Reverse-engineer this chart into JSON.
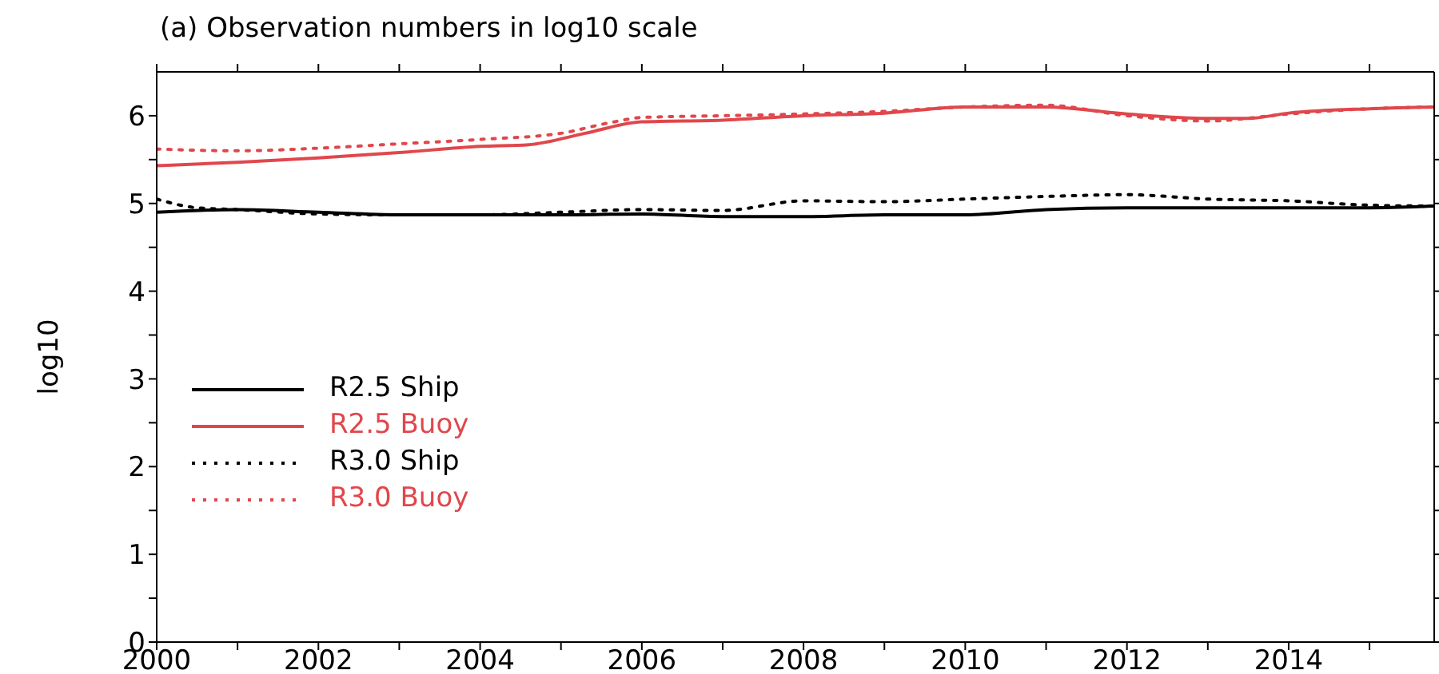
{
  "chart_data": {
    "type": "line",
    "title": "(a) Observation numbers in log10 scale",
    "ylabel": "log10",
    "xlim": [
      2000,
      2015.8
    ],
    "xticks": [
      2000,
      {
        "value": 2001,
        "label": null
      },
      2002,
      {
        "value": 2003,
        "label": null
      },
      2004,
      {
        "value": 2005,
        "label": null
      },
      2006,
      {
        "value": 2007,
        "label": null
      },
      2008,
      {
        "value": 2009,
        "label": null
      },
      2010,
      {
        "value": 2011,
        "label": null
      },
      2012,
      {
        "value": 2013,
        "label": null
      },
      2014,
      {
        "value": 2015,
        "label": null
      }
    ],
    "ylim": [
      0,
      6.5
    ],
    "yticks": [
      0,
      {
        "value": 0.5,
        "label": null
      },
      1,
      {
        "value": 1.5,
        "label": null
      },
      2,
      {
        "value": 2.5,
        "label": null
      },
      3,
      {
        "value": 3.5,
        "label": null
      },
      4,
      {
        "value": 4.5,
        "label": null
      },
      5,
      {
        "value": 5.5,
        "label": null
      },
      6
    ],
    "legend": "left",
    "marker": "none",
    "series": [
      {
        "name": "R2.5 Ship",
        "color": "#000000",
        "line_style": "solid",
        "x": [
          2000,
          2001,
          2002,
          2003,
          2004,
          2005,
          2006,
          2007,
          2008,
          2009,
          2010,
          2011,
          2012,
          2013,
          2014,
          2015,
          2015.8
        ],
        "values": [
          4.9,
          4.93,
          4.9,
          4.87,
          4.87,
          4.87,
          4.88,
          4.85,
          4.85,
          4.87,
          4.87,
          4.93,
          4.95,
          4.95,
          4.95,
          4.95,
          4.97
        ]
      },
      {
        "name": "R2.5 Buoy",
        "color": "#e0474c",
        "line_style": "solid",
        "x": [
          2000,
          2001,
          2002,
          2003,
          2004,
          2004.6,
          2005.3,
          2006,
          2007,
          2008,
          2009,
          2010,
          2011,
          2012,
          2013,
          2013.5,
          2014,
          2015,
          2015.8
        ],
        "values": [
          5.43,
          5.47,
          5.52,
          5.58,
          5.65,
          5.67,
          5.8,
          5.93,
          5.95,
          6.0,
          6.03,
          6.1,
          6.1,
          6.02,
          5.97,
          5.97,
          6.03,
          6.08,
          6.1
        ]
      },
      {
        "name": "R3.0 Ship",
        "color": "#000000",
        "line_style": "dotted",
        "x": [
          2000,
          2000.5,
          2001,
          2002,
          2003,
          2004,
          2005,
          2006,
          2007,
          2008,
          2009,
          2010,
          2011,
          2012,
          2013,
          2014,
          2015,
          2015.8
        ],
        "values": [
          5.05,
          4.95,
          4.93,
          4.88,
          4.87,
          4.87,
          4.9,
          4.93,
          4.92,
          5.03,
          5.02,
          5.05,
          5.08,
          5.1,
          5.05,
          5.03,
          4.98,
          4.97
        ]
      },
      {
        "name": "R3.0 Buoy",
        "color": "#e0474c",
        "line_style": "dotted",
        "x": [
          2000,
          2001,
          2002,
          2003,
          2004,
          2005,
          2005.6,
          2006,
          2007,
          2008,
          2009,
          2010,
          2011,
          2012,
          2013,
          2014,
          2015,
          2015.8
        ],
        "values": [
          5.62,
          5.6,
          5.63,
          5.68,
          5.73,
          5.8,
          5.92,
          5.98,
          6.0,
          6.02,
          6.05,
          6.1,
          6.12,
          6.0,
          5.94,
          6.02,
          6.08,
          6.1
        ]
      }
    ]
  }
}
